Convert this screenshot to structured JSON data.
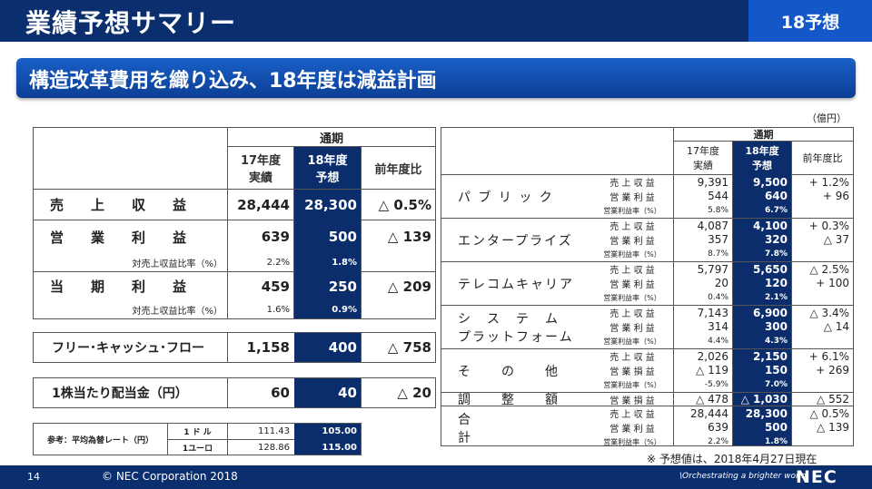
{
  "header": {
    "title": "業績予想サマリー",
    "tag": "18予想"
  },
  "banner": {
    "text": "構造改革費用を織り込み、18年度は減益計画"
  },
  "unit": "（億円）",
  "left": {
    "period": "通期",
    "col_fy17": [
      "17年度",
      "実績"
    ],
    "col_fy18": [
      "18年度",
      "予想"
    ],
    "col_yoy": "前年度比",
    "rows": [
      {
        "label": "売　　上　　収　　益",
        "fy17": "28,444",
        "fy18": "28,300",
        "yoy": "△ 0.5%"
      },
      {
        "label": "営　　業　　利　　益",
        "fy17": "639",
        "fy18": "500",
        "yoy": "△ 139"
      },
      {
        "label": "対売上収益比率（%）",
        "fy17": "2.2%",
        "fy18": "1.8%",
        "yoy": ""
      },
      {
        "label": "当　　期　　利　　益",
        "fy17": "459",
        "fy18": "250",
        "yoy": "△ 209"
      },
      {
        "label": "対売上収益比率（%）",
        "fy17": "1.6%",
        "fy18": "0.9%",
        "yoy": ""
      }
    ],
    "fcf": {
      "label": "フリー･キャッシュ･フロー",
      "fy17": "1,158",
      "fy18": "400",
      "yoy": "△ 758"
    },
    "dividend": {
      "label": "1株当たり配当金（円）",
      "fy17": "60",
      "fy18": "40",
      "yoy": "△ 20"
    },
    "fx": {
      "label": "参考：平均為替レート（円）",
      "rows": [
        {
          "cur": "1 ド ル",
          "fy17": "111.43",
          "fy18": "105.00"
        },
        {
          "cur": "1ユーロ",
          "fy17": "128.86",
          "fy18": "115.00"
        }
      ]
    }
  },
  "right": {
    "period": "通期",
    "col_fy17": [
      "17年度",
      "実績"
    ],
    "col_fy18": [
      "18年度",
      "予想"
    ],
    "col_yoy": "前年度比",
    "segments": [
      {
        "name": [
          "パ ブ リ ッ ク"
        ],
        "rows": [
          {
            "label": "売 上 収 益",
            "fy17": "9,391",
            "fy18": "9,500",
            "yoy": "+ 1.2%"
          },
          {
            "label": "営 業 利 益",
            "fy17": "544",
            "fy18": "640",
            "yoy": "+ 96"
          },
          {
            "label": "営業利益率（%）",
            "fy17": "5.8%",
            "fy18": "6.7%",
            "yoy": ""
          }
        ]
      },
      {
        "name": [
          "エンタープライズ"
        ],
        "rows": [
          {
            "label": "売 上 収 益",
            "fy17": "4,087",
            "fy18": "4,100",
            "yoy": "+ 0.3%"
          },
          {
            "label": "営 業 利 益",
            "fy17": "357",
            "fy18": "320",
            "yoy": "△ 37"
          },
          {
            "label": "営業利益率（%）",
            "fy17": "8.7%",
            "fy18": "7.8%",
            "yoy": ""
          }
        ]
      },
      {
        "name": [
          "テレコムキャリア"
        ],
        "rows": [
          {
            "label": "売 上 収 益",
            "fy17": "5,797",
            "fy18": "5,650",
            "yoy": "△ 2.5%"
          },
          {
            "label": "営 業 利 益",
            "fy17": "20",
            "fy18": "120",
            "yoy": "+ 100"
          },
          {
            "label": "営業利益率（%）",
            "fy17": "0.4%",
            "fy18": "2.1%",
            "yoy": ""
          }
        ]
      },
      {
        "name": [
          "シ　ス　テ　ム",
          "プラットフォーム"
        ],
        "rows": [
          {
            "label": "売 上 収 益",
            "fy17": "7,143",
            "fy18": "6,900",
            "yoy": "△ 3.4%"
          },
          {
            "label": "営 業 利 益",
            "fy17": "314",
            "fy18": "300",
            "yoy": "△ 14"
          },
          {
            "label": "営業利益率（%）",
            "fy17": "4.4%",
            "fy18": "4.3%",
            "yoy": ""
          }
        ]
      },
      {
        "name": [
          "そ　　の　　他"
        ],
        "rows": [
          {
            "label": "売 上 収 益",
            "fy17": "2,026",
            "fy18": "2,150",
            "yoy": "+ 6.1%"
          },
          {
            "label": "営 業 損 益",
            "fy17": "△ 119",
            "fy18": "150",
            "yoy": "+ 269"
          },
          {
            "label": "営業利益率（%）",
            "fy17": "-5.9%",
            "fy18": "7.0%",
            "yoy": ""
          }
        ]
      },
      {
        "name": [
          "調　　整　　額"
        ],
        "rows": [
          {
            "label": "営 業 損 益",
            "fy17": "△ 478",
            "fy18": "△ 1,030",
            "yoy": "△ 552"
          }
        ]
      },
      {
        "name": [
          "合　　　　　　　　計"
        ],
        "rows": [
          {
            "label": "売 上 収 益",
            "fy17": "28,444",
            "fy18": "28,300",
            "yoy": "△ 0.5%"
          },
          {
            "label": "営 業 利 益",
            "fy17": "639",
            "fy18": "500",
            "yoy": "△ 139"
          },
          {
            "label": "営業利益率（%）",
            "fy17": "2.2%",
            "fy18": "1.8%",
            "yoy": ""
          }
        ]
      }
    ]
  },
  "note": "※ 予想値は、2018年4月27日現在",
  "footer": {
    "page": "14",
    "copyright": "© NEC Corporation 2018",
    "tagline": "\\Orchestrating a brighter world",
    "logo": "NEC"
  },
  "colors": {
    "header": "#0a2e6e",
    "accent": "#1457c8",
    "highlight": "#0c2d6b"
  }
}
